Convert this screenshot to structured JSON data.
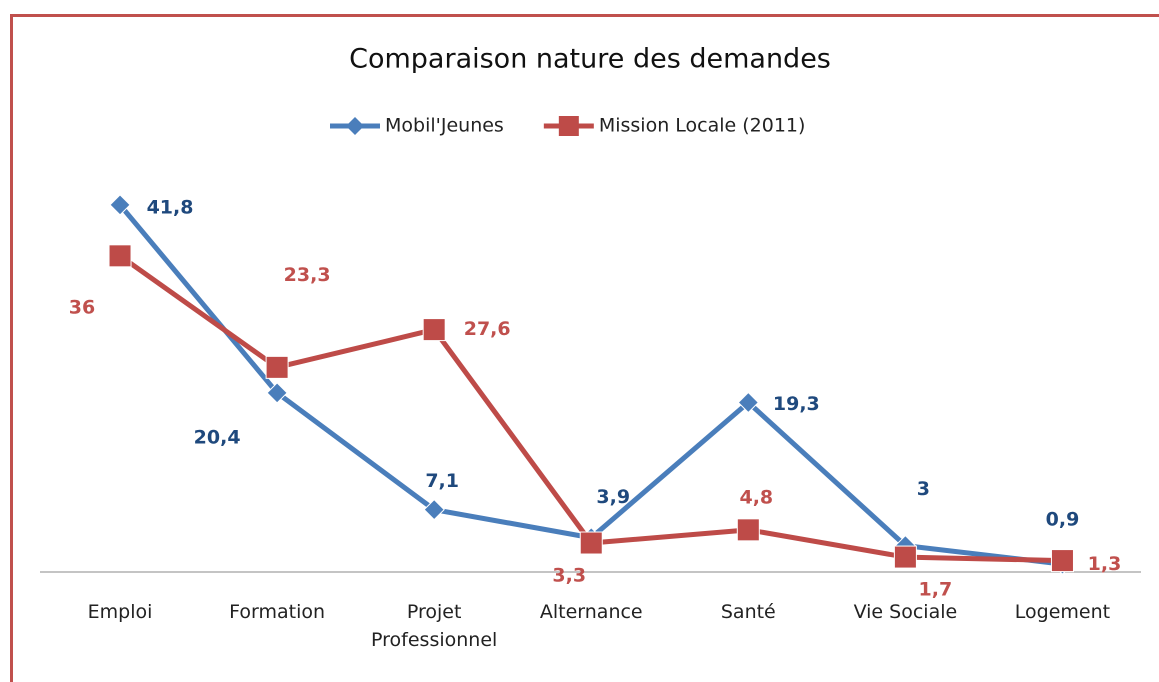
{
  "chart_data": {
    "type": "line",
    "title": "Comparaison nature des demandes",
    "categories": [
      "Emploi",
      "Formation",
      "Projet Professionnel",
      "Alternance",
      "Santé",
      "Vie Sociale",
      "Logement"
    ],
    "series": [
      {
        "name": "Mobil'Jeunes",
        "color": "#4a7ebb",
        "values": [
          41.8,
          20.4,
          7.1,
          3.9,
          19.3,
          3,
          0.9
        ],
        "value_labels": [
          "41,8",
          "20,4",
          "7,1",
          "3,9",
          "19,3",
          "3",
          "0,9"
        ]
      },
      {
        "name": "Mission Locale (2011)",
        "color": "#be4b48",
        "values": [
          36,
          23.3,
          27.6,
          3.3,
          4.8,
          1.7,
          1.3
        ],
        "value_labels": [
          "36",
          "23,3",
          "27,6",
          "3,3",
          "4,8",
          "1,7",
          "1,3"
        ]
      }
    ],
    "ylim": [
      0,
      46
    ],
    "legend": "top"
  }
}
